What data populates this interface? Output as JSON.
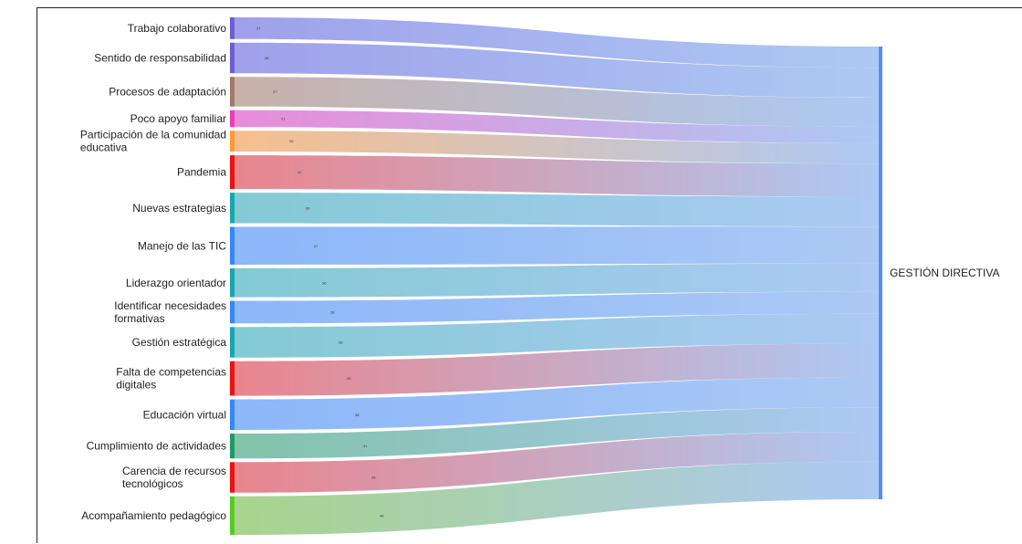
{
  "chart_data": {
    "type": "sankey",
    "title": "",
    "target": {
      "name": "GESTIÓN DIRECTIVA",
      "color": "#5b8def"
    },
    "sources": [
      {
        "name": "Trabajo colaborativo",
        "lines": [
          "Trabajo colaborativo"
        ],
        "value": 27,
        "color": "#6b5fd6",
        "flow": "#8f8fe6"
      },
      {
        "name": "Sentido de responsabilidad",
        "lines": [
          "Sentido de responsabilidad"
        ],
        "value": 38,
        "color": "#6b5fd6",
        "flow": "#8f8fe6"
      },
      {
        "name": "Procesos de adaptación",
        "lines": [
          "Procesos de adaptación"
        ],
        "value": 37,
        "color": "#a4796a",
        "flow": "#bfa39a"
      },
      {
        "name": "Poco apoyo familiar",
        "lines": [
          "Poco apoyo familiar"
        ],
        "value": 21,
        "color": "#e83dba",
        "flow": "#e577d3"
      },
      {
        "name": "Participación de la comunidad educativa",
        "lines": [
          "Participación de la comunidad",
          "educativa"
        ],
        "value": 26,
        "color": "#ff9933",
        "flow": "#f5b37a"
      },
      {
        "name": "Pandemia",
        "lines": [
          "Pandemia"
        ],
        "value": 42,
        "color": "#ee1111",
        "flow": "#e5707a"
      },
      {
        "name": "Nuevas estrategias",
        "lines": [
          "Nuevas estrategias"
        ],
        "value": 38,
        "color": "#17a6b5",
        "flow": "#6ec1cd"
      },
      {
        "name": "Manejo de las TIC",
        "lines": [
          "Manejo de las TIC"
        ],
        "value": 47,
        "color": "#3388ff",
        "flow": "#77aaf8"
      },
      {
        "name": "Liderazgo orientador",
        "lines": [
          "Liderazgo orientador"
        ],
        "value": 36,
        "color": "#17a6b5",
        "flow": "#6ec1cd"
      },
      {
        "name": "Identificar necesidades formativas",
        "lines": [
          "Identificar necesidades",
          "formativas"
        ],
        "value": 28,
        "color": "#3388ff",
        "flow": "#77aaf8"
      },
      {
        "name": "Gestión estratégica",
        "lines": [
          "Gestión estratégica"
        ],
        "value": 38,
        "color": "#17a6b5",
        "flow": "#6ec1cd"
      },
      {
        "name": "Falta de competencias digitales",
        "lines": [
          "Falta de competencias",
          "digitales"
        ],
        "value": 43,
        "color": "#ee1111",
        "flow": "#e5707a"
      },
      {
        "name": "Educación virtual",
        "lines": [
          "Educación virtual"
        ],
        "value": 38,
        "color": "#3388ff",
        "flow": "#77aaf8"
      },
      {
        "name": "Cumplimiento de actividades",
        "lines": [
          "Cumplimiento de actividades"
        ],
        "value": 31,
        "color": "#1f9a6a",
        "flow": "#6cb89a"
      },
      {
        "name": "Carencia de recursos tecnológicos",
        "lines": [
          "Carencia de recursos",
          "tecnológicos"
        ],
        "value": 38,
        "color": "#ee1111",
        "flow": "#e5707a"
      },
      {
        "name": "Acompañamiento pedagógico",
        "lines": [
          "Acompañamiento pedagógico"
        ],
        "value": 48,
        "color": "#55cc22",
        "flow": "#99cc77"
      }
    ]
  }
}
